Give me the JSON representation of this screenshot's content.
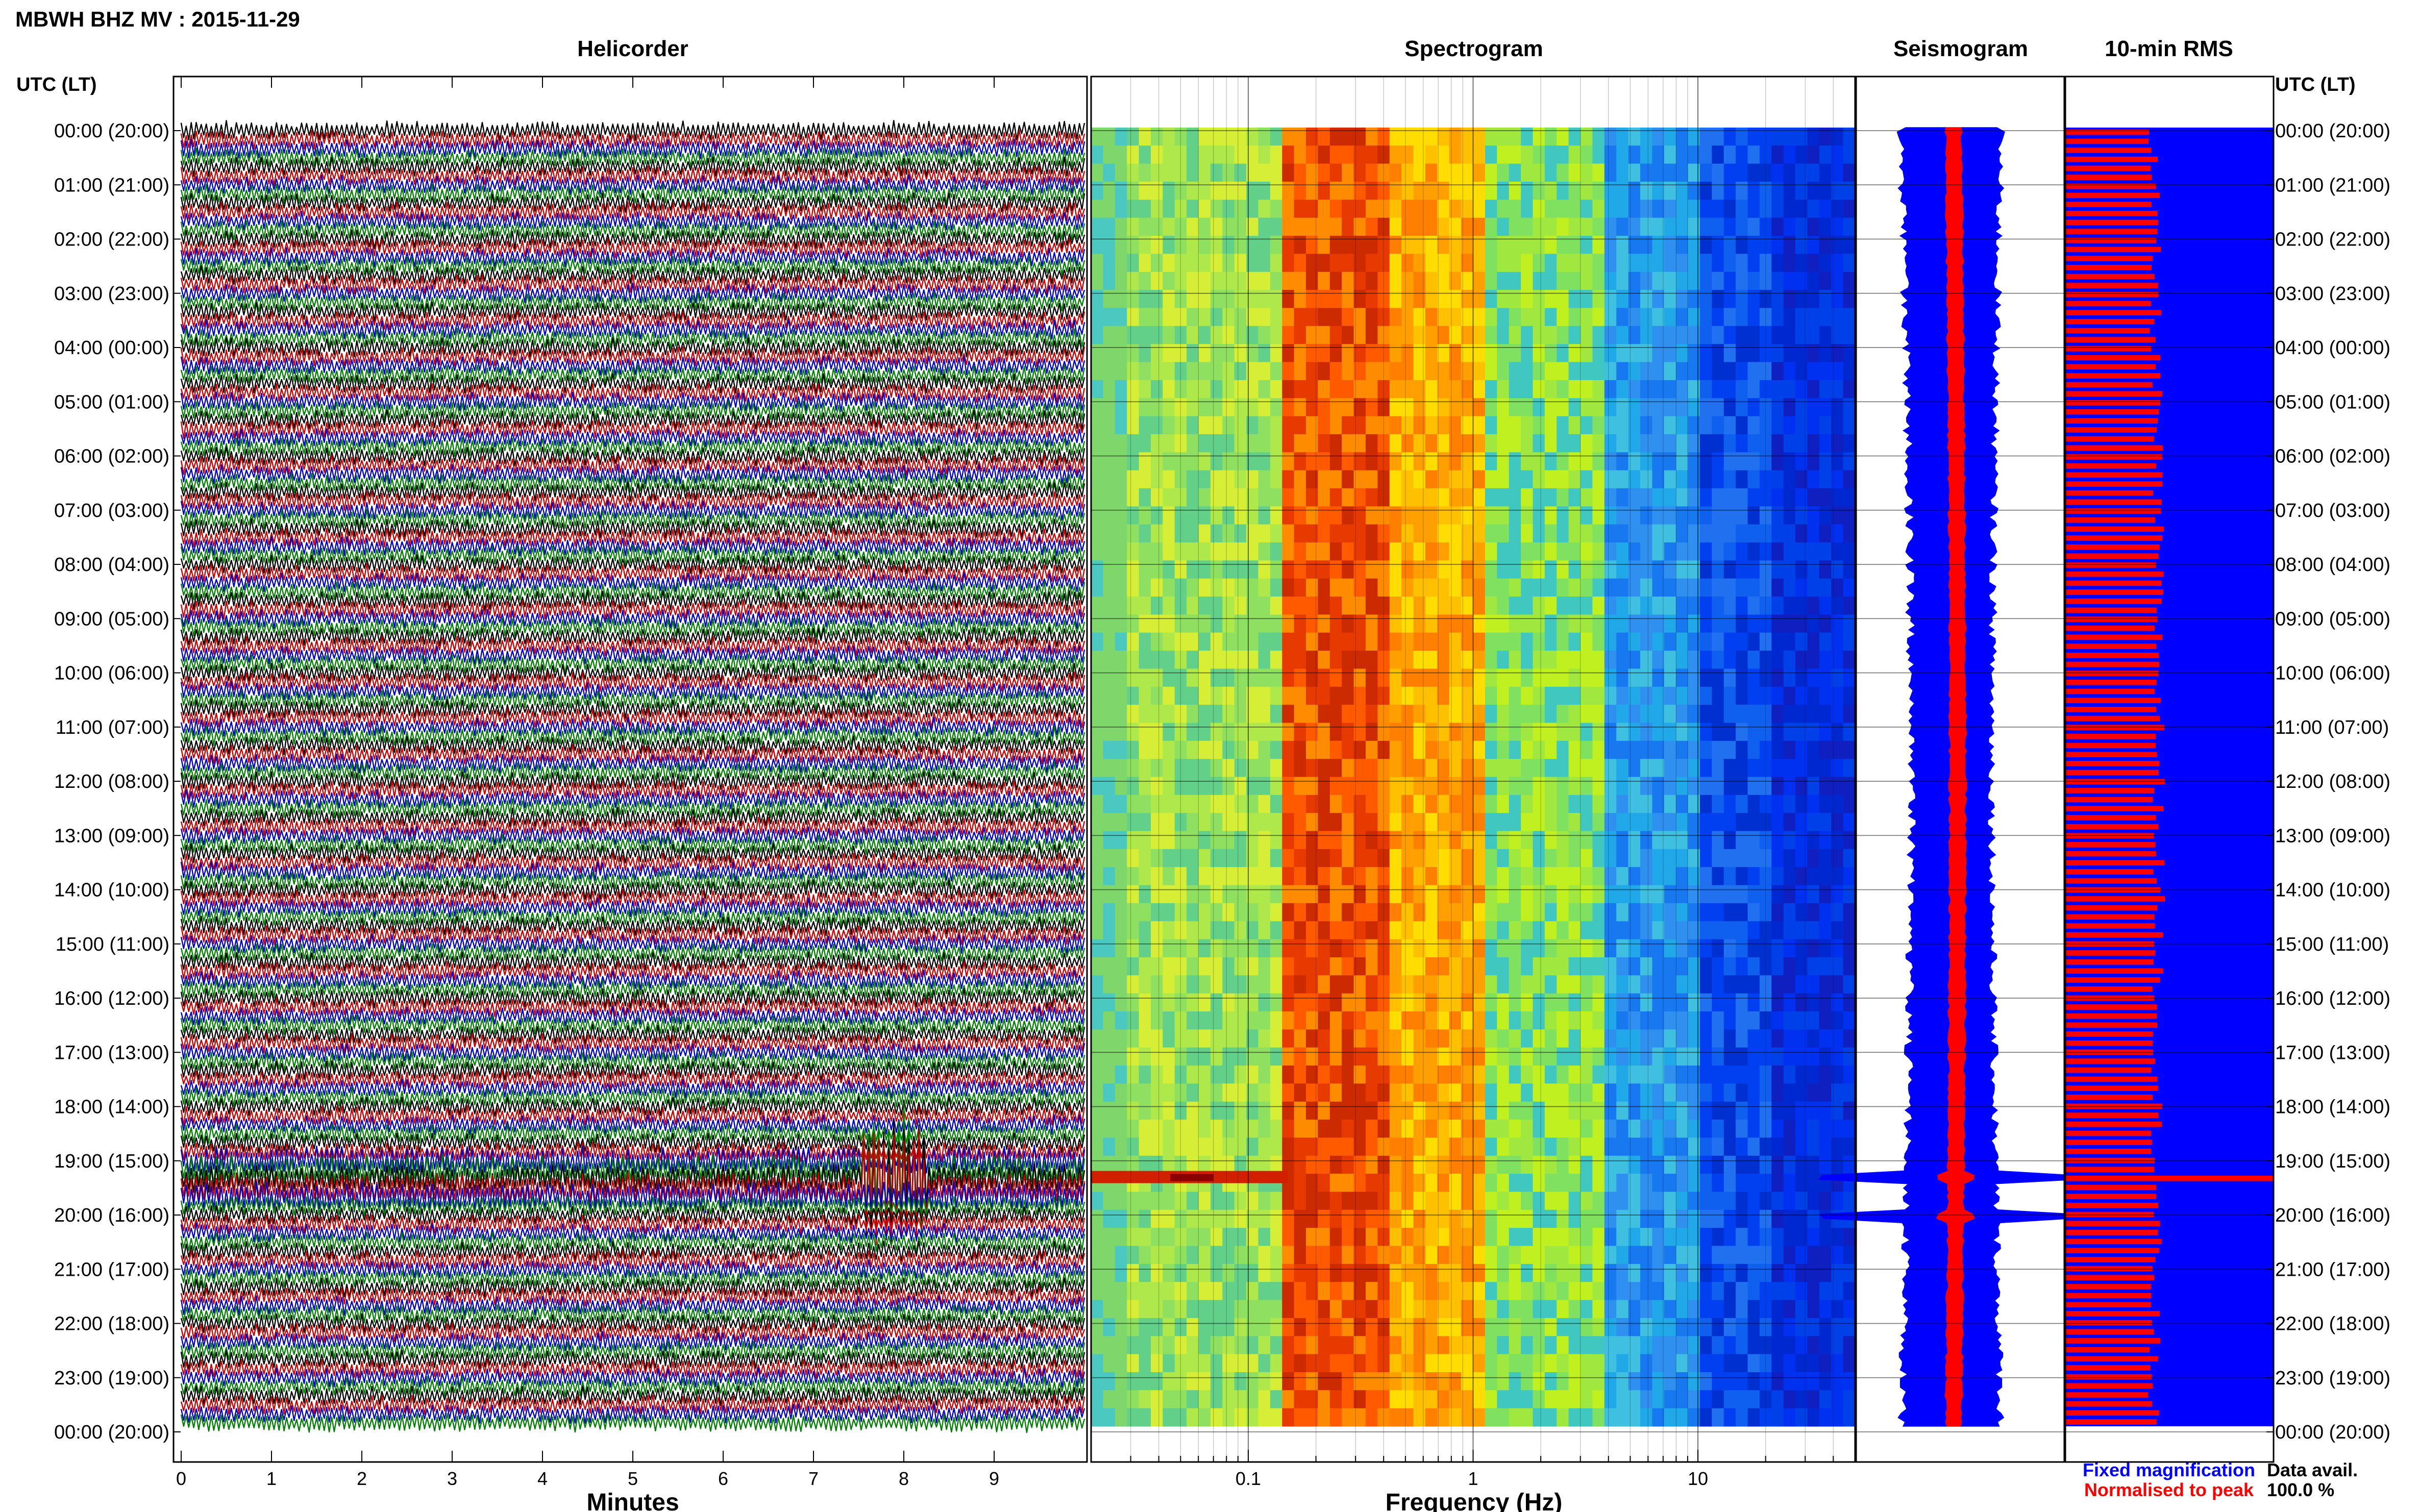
{
  "header": {
    "title": "MBWH BHZ MV : 2015-11-29"
  },
  "panels": {
    "helicorder": "Helicorder",
    "spectrogram": "Spectrogram",
    "seismogram": "Seismogram",
    "rms": "10-min RMS"
  },
  "axis": {
    "left_header": "UTC (LT)",
    "right_header": "UTC (LT)"
  },
  "legend": {
    "fixed": "Fixed magnification",
    "normalised": "Normalised to peak",
    "data_avail_label": "Data avail.",
    "data_avail_value": "100.0 %"
  },
  "colors": {
    "fixed": "#0000ff",
    "normalised": "#ff0000",
    "helicorder_traces": [
      "#000000",
      "#cc0000",
      "#0000cc",
      "#008000"
    ]
  },
  "chart_data": [
    {
      "type": "line",
      "name": "helicorder",
      "title": "Helicorder",
      "xlabel": "Minutes",
      "x_ticks": [
        0,
        1,
        2,
        3,
        4,
        5,
        6,
        7,
        8,
        9
      ],
      "xlim": [
        0,
        10
      ],
      "y_ticks": [
        "00:00 (20:00)",
        "01:00 (21:00)",
        "02:00 (22:00)",
        "03:00 (23:00)",
        "04:00 (00:00)",
        "05:00 (01:00)",
        "06:00 (02:00)",
        "07:00 (03:00)",
        "08:00 (04:00)",
        "09:00 (05:00)",
        "10:00 (06:00)",
        "11:00 (07:00)",
        "12:00 (08:00)",
        "13:00 (09:00)",
        "14:00 (10:00)",
        "15:00 (11:00)",
        "16:00 (12:00)",
        "17:00 (13:00)",
        "18:00 (14:00)",
        "19:00 (15:00)",
        "20:00 (16:00)",
        "21:00 (17:00)",
        "22:00 (18:00)",
        "23:00 (19:00)",
        "00:00 (20:00)"
      ],
      "rows_per_hour": 6,
      "events": [
        {
          "hour": 19.35,
          "minute": 7.9
        }
      ]
    },
    {
      "type": "heatmap",
      "name": "spectrogram",
      "title": "Spectrogram",
      "xlabel": "Frequency (Hz)",
      "x_scale": "log",
      "xlim": [
        0.02,
        50
      ],
      "x_ticks": [
        "0.1",
        "1",
        "10"
      ],
      "ridge_hz": 0.2,
      "band_edges_hz": [
        0.03,
        0.45,
        1.2,
        4,
        10,
        20
      ],
      "events": [
        {
          "hour": 19.3,
          "from_hz": 0.02,
          "to_hz": 0.15
        }
      ]
    },
    {
      "type": "area",
      "name": "seismogram",
      "title": "Seismogram",
      "series": [
        {
          "name": "Fixed magnification"
        },
        {
          "name": "Normalised to peak"
        }
      ],
      "events": [
        19.3,
        20.0
      ]
    },
    {
      "type": "bar",
      "name": "rms",
      "title": "10-min RMS",
      "series": [
        {
          "name": "Fixed magnification"
        },
        {
          "name": "Normalised to peak"
        }
      ],
      "fixed_value": 1.0,
      "normalised_peak_hour": 19.3,
      "normalised_typical": 0.42
    }
  ]
}
